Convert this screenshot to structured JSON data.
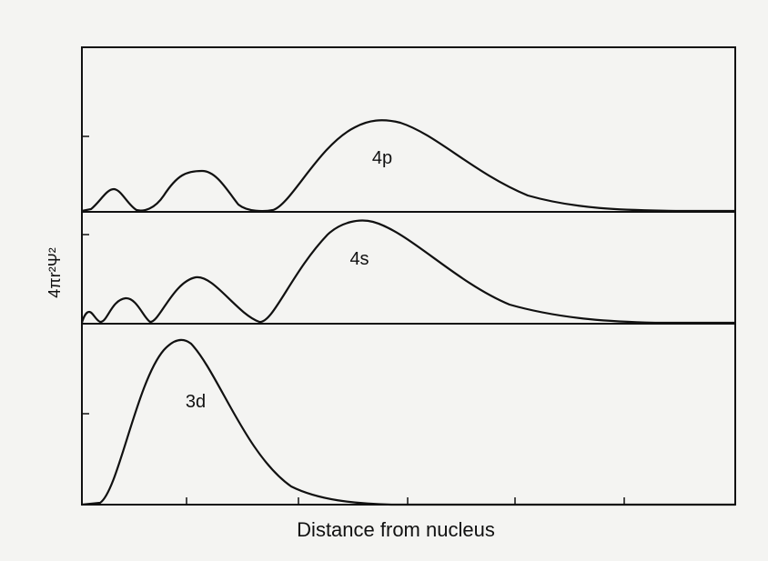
{
  "panels": [
    {
      "label": "4p"
    },
    {
      "label": "4s"
    },
    {
      "label": "3d"
    }
  ],
  "x_axis_label": "Distance from nucleus",
  "y_axis_label": "4πr²Ψ²"
}
